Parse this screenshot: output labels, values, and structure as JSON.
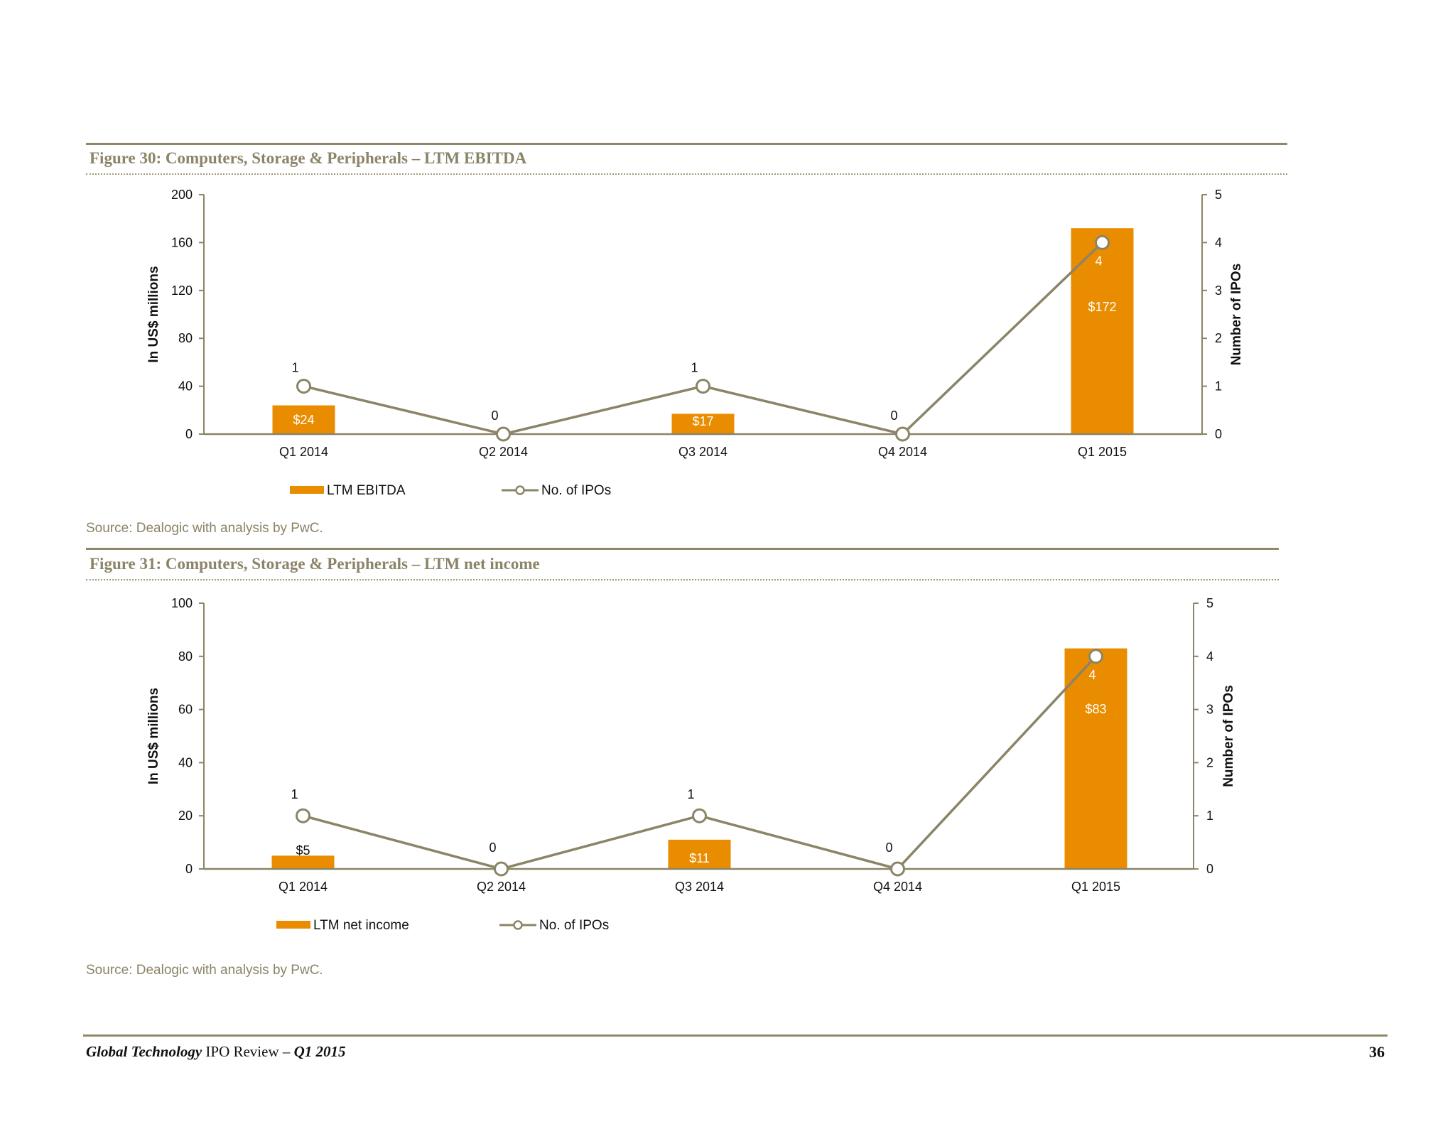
{
  "figures": [
    {
      "title": "Figure 30: Computers, Storage & Peripherals – LTM EBITDA",
      "source": "Source: Dealogic with analysis by PwC."
    },
    {
      "title": "Figure 31: Computers, Storage & Peripherals – LTM net income",
      "source": "Source: Dealogic with analysis by PwC."
    }
  ],
  "footer": {
    "title_bold": "Global Technology",
    "title_mid": " IPO Review – ",
    "title_period": "Q1 2015",
    "page_number": "36"
  },
  "colors": {
    "bar": "#ea8c00",
    "line": "#8b8466",
    "rule": "#8f8866"
  },
  "chart_data": [
    {
      "type": "bar",
      "combo": "bar-line",
      "categories": [
        "Q1 2014",
        "Q2 2014",
        "Q3 2014",
        "Q4 2014",
        "Q1 2015"
      ],
      "ylabel": "In US$ millions",
      "y2label": "Number of IPOs",
      "ylim": [
        0,
        200
      ],
      "yticks": [
        0,
        40,
        80,
        120,
        160,
        200
      ],
      "y2lim": [
        0,
        5
      ],
      "y2ticks": [
        0,
        1,
        2,
        3,
        4,
        5
      ],
      "series": [
        {
          "name": "LTM EBITDA",
          "type": "bar",
          "axis": "left",
          "values": [
            24,
            0,
            17,
            0,
            172
          ],
          "labels": [
            "$24",
            "",
            "$17",
            "",
            "$172"
          ]
        },
        {
          "name": "No. of IPOs",
          "type": "line",
          "axis": "right",
          "values": [
            1,
            0,
            1,
            0,
            4
          ],
          "labels": [
            "1",
            "0",
            "1",
            "0",
            "4"
          ]
        }
      ],
      "legend": "bottom"
    },
    {
      "type": "bar",
      "combo": "bar-line",
      "categories": [
        "Q1 2014",
        "Q2 2014",
        "Q3 2014",
        "Q4 2014",
        "Q1 2015"
      ],
      "ylabel": "In US$ millions",
      "y2label": "Number of IPOs",
      "ylim": [
        0,
        100
      ],
      "yticks": [
        0,
        20,
        40,
        60,
        80,
        100
      ],
      "y2lim": [
        0,
        5
      ],
      "y2ticks": [
        0,
        1,
        2,
        3,
        4,
        5
      ],
      "series": [
        {
          "name": "LTM net income",
          "type": "bar",
          "axis": "left",
          "values": [
            5,
            0,
            11,
            0,
            83
          ],
          "labels": [
            "$5",
            "",
            "$11",
            "",
            "$83"
          ]
        },
        {
          "name": "No. of IPOs",
          "type": "line",
          "axis": "right",
          "values": [
            1,
            0,
            1,
            0,
            4
          ],
          "labels": [
            "1",
            "0",
            "1",
            "0",
            "4"
          ]
        }
      ],
      "legend": "bottom"
    }
  ]
}
